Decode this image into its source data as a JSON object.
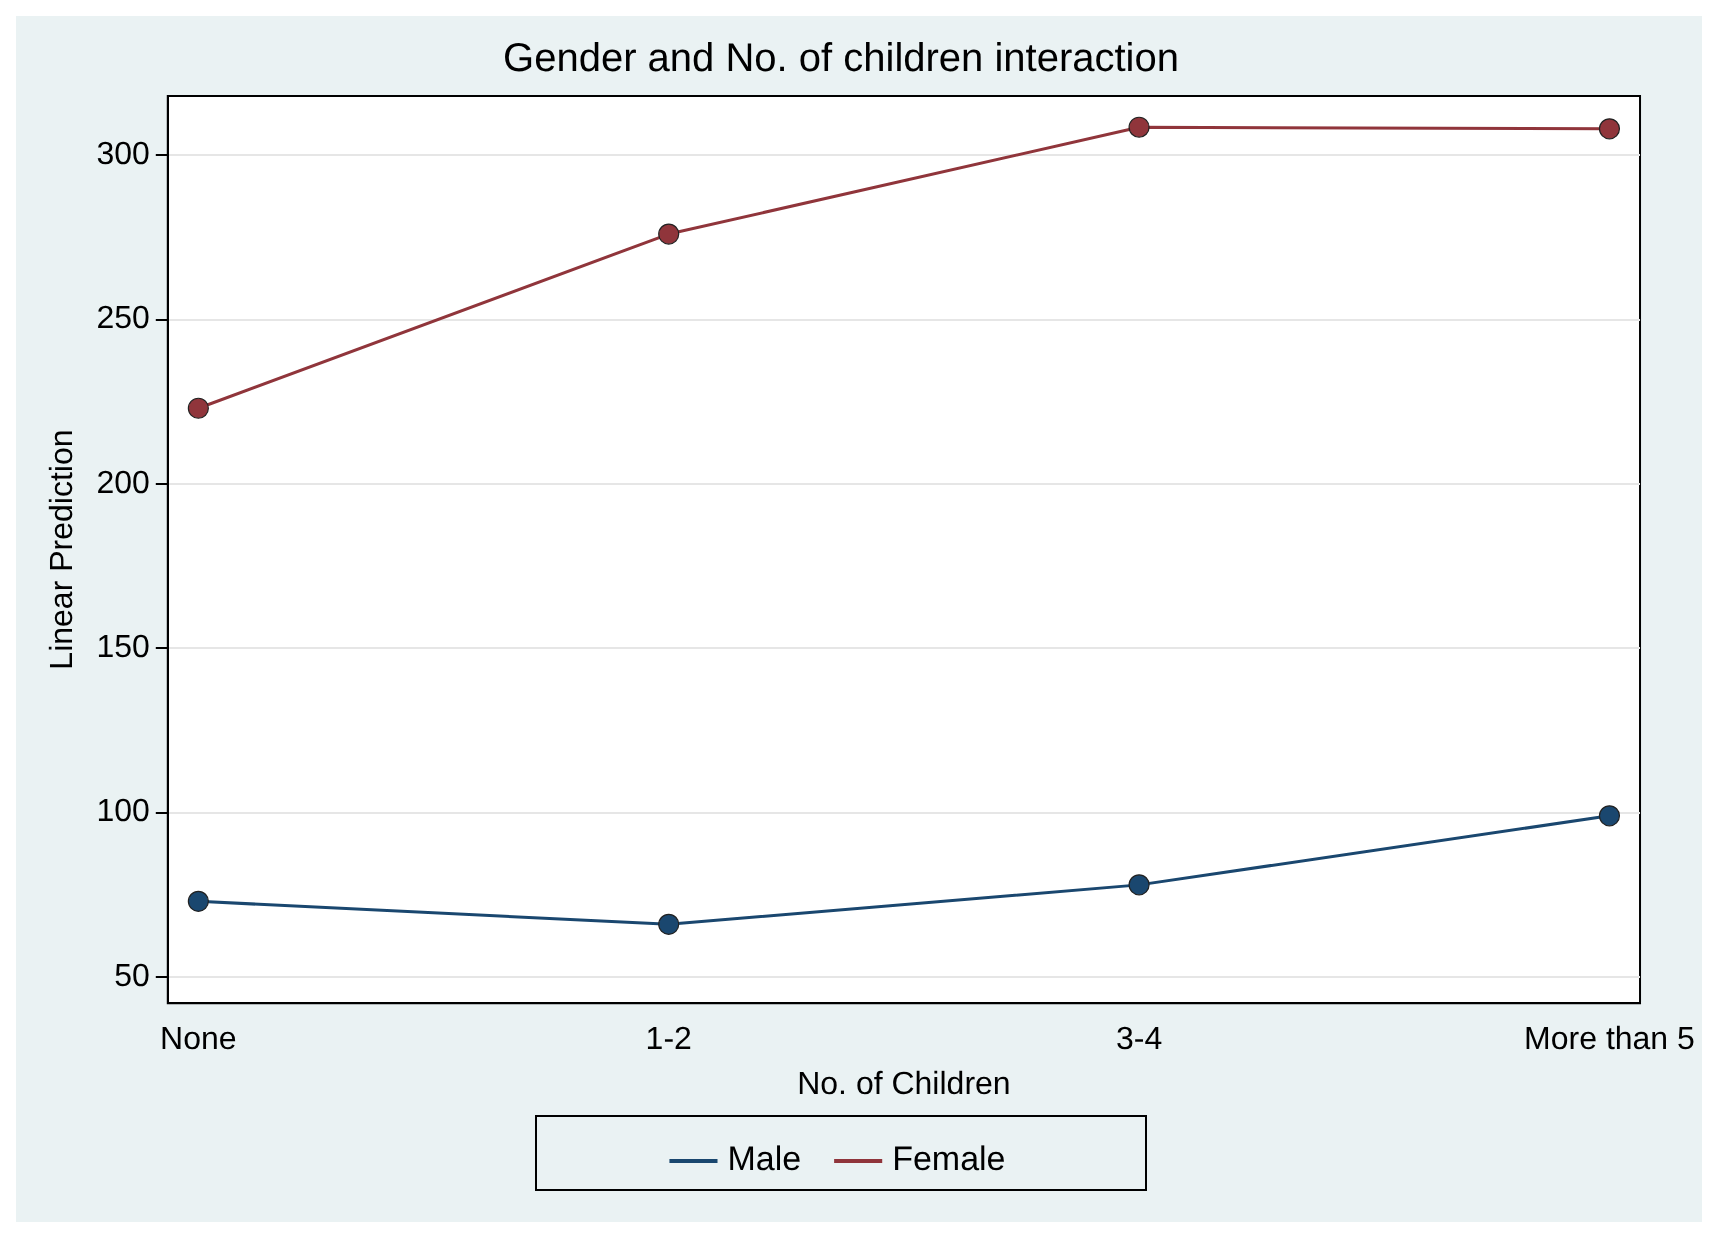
{
  "chart_data": {
    "type": "line",
    "title": "Gender and No. of children interaction",
    "xlabel": "No. of Children",
    "ylabel": "Linear Prediction",
    "categories": [
      "None",
      "1-2",
      "3-4",
      "More than 5"
    ],
    "series": [
      {
        "name": "Male",
        "color": "#1a476f",
        "values": [
          73,
          66,
          78,
          99
        ]
      },
      {
        "name": "Female",
        "color": "#90353b",
        "values": [
          223,
          276,
          308.5,
          308
        ]
      }
    ],
    "ylim": [
      42,
      318
    ],
    "yticks": [
      50,
      100,
      150,
      200,
      250,
      300
    ],
    "grid": "y",
    "legend": "bottom",
    "marker": "circle",
    "line_style": "solid"
  }
}
